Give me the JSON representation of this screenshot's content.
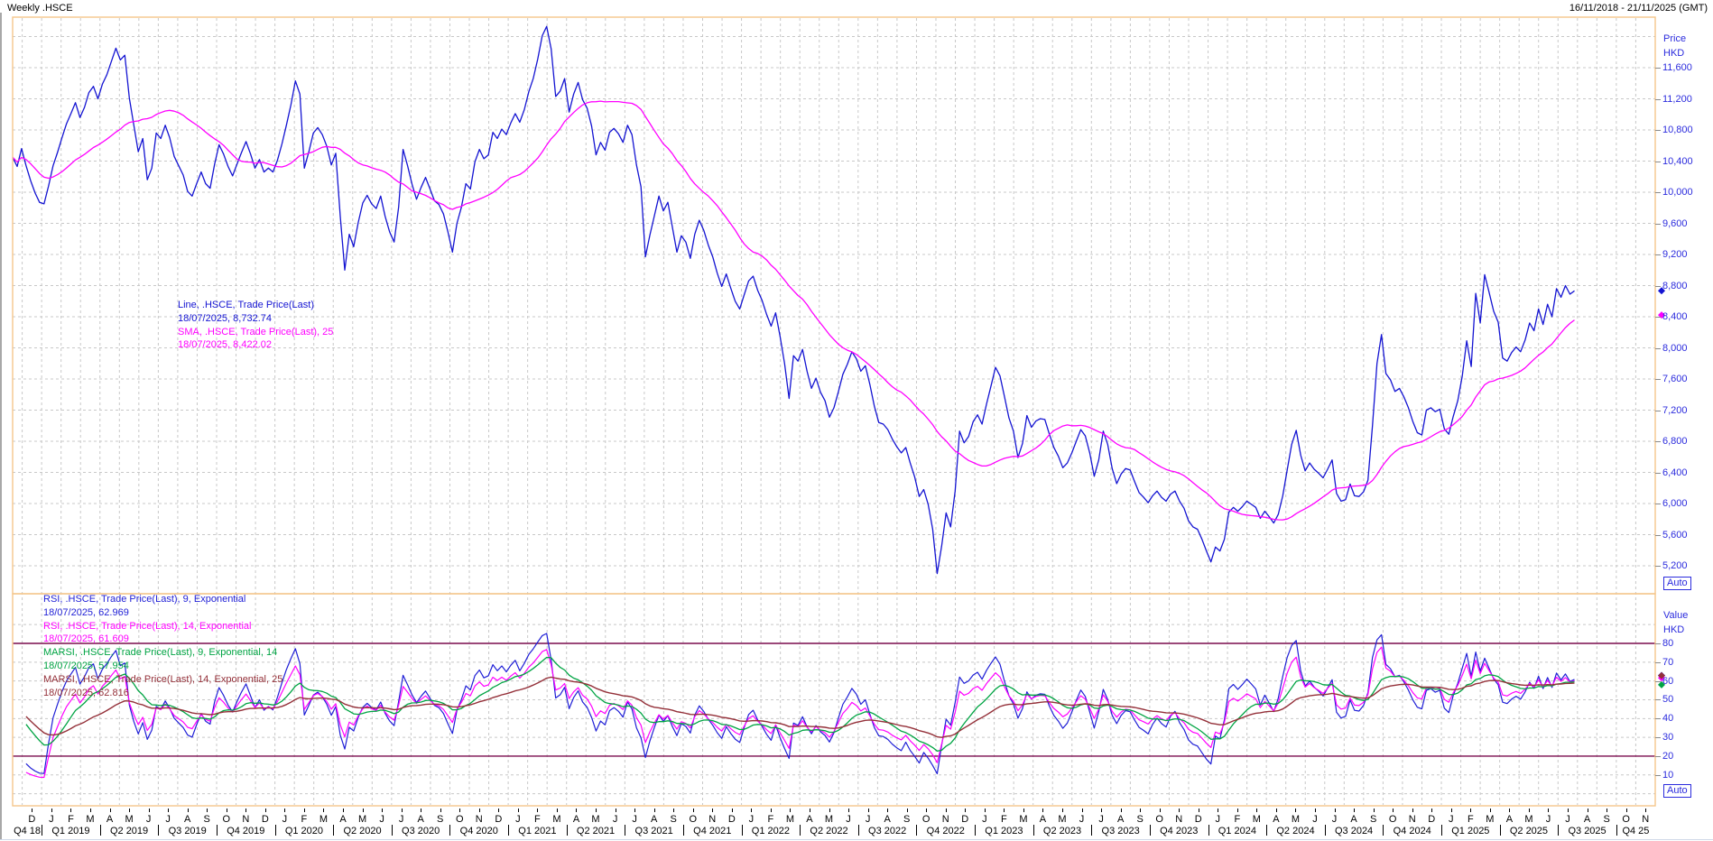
{
  "window": {
    "title": "Weekly .HSCE",
    "date_range": "16/11/2018 - 21/11/2025 (GMT)"
  },
  "auto_label": "Auto",
  "colors": {
    "border": "#F4C68C",
    "grid": "#C8C8C8",
    "level": "#7A0B4D",
    "price_line": "#1414D2",
    "sma_line": "#FF00FF",
    "rsi9": "#1F1FD6",
    "rsi14": "#FF00FF",
    "marsi9": "#00A443",
    "marsi25": "#943039",
    "axis_text": "#2B2BDD",
    "black_text": "#000000"
  },
  "chart_data": {
    "type": "line",
    "title": "Weekly .HSCE",
    "instrument": ".HSCE",
    "interval": "Weekly",
    "x_range": {
      "start": "16/11/2018",
      "end": "21/11/2025"
    },
    "price_panel": {
      "axis_title": [
        "Price",
        "HKD"
      ],
      "y_ticks": [
        11600,
        11200,
        10800,
        10400,
        10000,
        9600,
        9200,
        8800,
        8400,
        8000,
        7600,
        7200,
        6800,
        6400,
        6000,
        5600,
        5200
      ],
      "ylim": [
        5030,
        12240
      ],
      "grid": true,
      "series": [
        {
          "name": "Line, .HSCE, Trade Price(Last)",
          "value_label": "18/07/2025, 8,732.74",
          "last": 8732.74,
          "color": "#1414D2",
          "kind": "price"
        },
        {
          "name": "SMA, .HSCE, Trade Price(Last),  25",
          "value_label": "18/07/2025, 8,422.02",
          "last": 8422.02,
          "color": "#FF00FF",
          "kind": "sma",
          "period": 25
        }
      ],
      "weekly_prices": [
        10450,
        10330,
        10560,
        10340,
        10150,
        9990,
        9870,
        9850,
        10080,
        10340,
        10510,
        10700,
        10880,
        11010,
        11150,
        10960,
        11090,
        11280,
        11360,
        11200,
        11390,
        11510,
        11680,
        11850,
        11700,
        11760,
        11210,
        10860,
        10520,
        10690,
        10160,
        10310,
        10760,
        10690,
        10860,
        10700,
        10460,
        10340,
        10220,
        10010,
        9950,
        10110,
        10260,
        10110,
        10050,
        10360,
        10610,
        10490,
        10330,
        10210,
        10360,
        10510,
        10650,
        10490,
        10310,
        10420,
        10260,
        10310,
        10260,
        10410,
        10620,
        10860,
        11120,
        11430,
        11260,
        10310,
        10520,
        10760,
        10830,
        10740,
        10590,
        10350,
        10500,
        9690,
        9000,
        9460,
        9300,
        9610,
        9860,
        9960,
        9850,
        9790,
        9950,
        9690,
        9490,
        9360,
        9810,
        10550,
        10340,
        10100,
        9910,
        10060,
        10190,
        10040,
        9890,
        9840,
        9720,
        9490,
        9230,
        9600,
        9810,
        10110,
        10040,
        10390,
        10550,
        10430,
        10480,
        10770,
        10690,
        10810,
        10740,
        10890,
        11010,
        10900,
        11060,
        11290,
        11460,
        11710,
        12010,
        12130,
        11840,
        11230,
        11300,
        11460,
        11030,
        11260,
        11410,
        11190,
        11080,
        10850,
        10480,
        10640,
        10540,
        10770,
        10820,
        10750,
        10640,
        10860,
        10740,
        10350,
        10070,
        9170,
        9450,
        9700,
        9950,
        9760,
        9870,
        9550,
        9230,
        9440,
        9360,
        9150,
        9460,
        9640,
        9510,
        9320,
        9170,
        8960,
        8790,
        8950,
        8770,
        8600,
        8500,
        8680,
        8860,
        8920,
        8740,
        8610,
        8430,
        8280,
        8450,
        8150,
        7800,
        7350,
        7900,
        7830,
        7980,
        7700,
        7480,
        7610,
        7430,
        7320,
        7110,
        7230,
        7440,
        7660,
        7790,
        7950,
        7860,
        7700,
        7770,
        7530,
        7250,
        7040,
        7020,
        6950,
        6830,
        6730,
        6650,
        6720,
        6520,
        6340,
        6090,
        6180,
        5990,
        5670,
        5100,
        5450,
        5880,
        5700,
        6160,
        6930,
        6780,
        6860,
        7050,
        7140,
        7020,
        7280,
        7510,
        7750,
        7640,
        7370,
        7100,
        6930,
        6590,
        6770,
        7130,
        6980,
        7060,
        7090,
        7080,
        6890,
        6720,
        6610,
        6460,
        6520,
        6650,
        6800,
        6950,
        6870,
        6650,
        6350,
        6560,
        6930,
        6760,
        6450,
        6255,
        6380,
        6450,
        6430,
        6280,
        6140,
        6080,
        6010,
        6100,
        6160,
        6080,
        6030,
        6120,
        6160,
        6030,
        5940,
        5780,
        5700,
        5670,
        5540,
        5390,
        5250,
        5440,
        5390,
        5540,
        5890,
        5950,
        5900,
        5960,
        6030,
        5990,
        5950,
        5810,
        5900,
        5830,
        5750,
        5860,
        6100,
        6430,
        6760,
        6940,
        6620,
        6420,
        6520,
        6440,
        6390,
        6330,
        6440,
        6560,
        6130,
        6030,
        6050,
        6250,
        6100,
        6090,
        6150,
        6300,
        7000,
        7800,
        8170,
        7670,
        7590,
        7440,
        7480,
        7370,
        7230,
        7050,
        6910,
        6880,
        7200,
        7230,
        7180,
        7210,
        6960,
        6890,
        7120,
        7320,
        7640,
        8090,
        7760,
        8700,
        8320,
        8940,
        8710,
        8470,
        8330,
        7870,
        7830,
        7940,
        8010,
        7950,
        8100,
        8320,
        8220,
        8500,
        8300,
        8560,
        8400,
        8760,
        8650,
        8800,
        8690,
        8733
      ]
    },
    "rsi_panel": {
      "axis_title": [
        "Value",
        "HKD"
      ],
      "y_ticks": [
        80,
        70,
        60,
        50,
        40,
        30,
        20,
        10
      ],
      "levels": [
        80,
        20
      ],
      "grid": true,
      "series": [
        {
          "name": "RSI, .HSCE, Trade Price(Last),  9, Exponential",
          "value_label": "18/07/2025, 62.969",
          "last": 62.969,
          "color": "#1F1FD6",
          "kind": "rsi",
          "period": 9
        },
        {
          "name": "RSI, .HSCE, Trade Price(Last),  14, Exponential",
          "value_label": "18/07/2025, 61.609",
          "last": 61.609,
          "color": "#FF00FF",
          "kind": "rsi",
          "period": 14
        },
        {
          "name": "MARSI, .HSCE, Trade Price(Last),  9, Exponential, 14",
          "value_label": "18/07/2025, 57.954",
          "last": 57.954,
          "color": "#00A443",
          "kind": "marsi",
          "rsi_period": 9,
          "ma_period": 14
        },
        {
          "name": "MARSI, .HSCE, Trade Price(Last),  14, Exponential, 25",
          "value_label": "18/07/2025, 62.816",
          "last": 62.816,
          "color": "#943039",
          "kind": "marsi",
          "rsi_period": 14,
          "ma_period": 25
        }
      ]
    },
    "x_axis": {
      "months": "DJFMAMJJASONDJFMAMJJASONDJFMAMJJASONDJFMAMJJASONDJFMAMJJASONDJFMAMJJASONDJFMAMJJASON",
      "quarters": [
        "Q4 18",
        "Q1 2019",
        "Q2 2019",
        "Q3 2019",
        "Q4 2019",
        "Q1 2020",
        "Q2 2020",
        "Q3 2020",
        "Q4 2020",
        "Q1 2021",
        "Q2 2021",
        "Q3 2021",
        "Q4 2021",
        "Q1 2022",
        "Q2 2022",
        "Q3 2022",
        "Q4 2022",
        "Q1 2023",
        "Q2 2023",
        "Q3 2023",
        "Q4 2023",
        "Q1 2024",
        "Q2 2024",
        "Q3 2024",
        "Q4 2024",
        "Q1 2025",
        "Q2 2025",
        "Q3 2025",
        "Q4 25"
      ]
    }
  }
}
